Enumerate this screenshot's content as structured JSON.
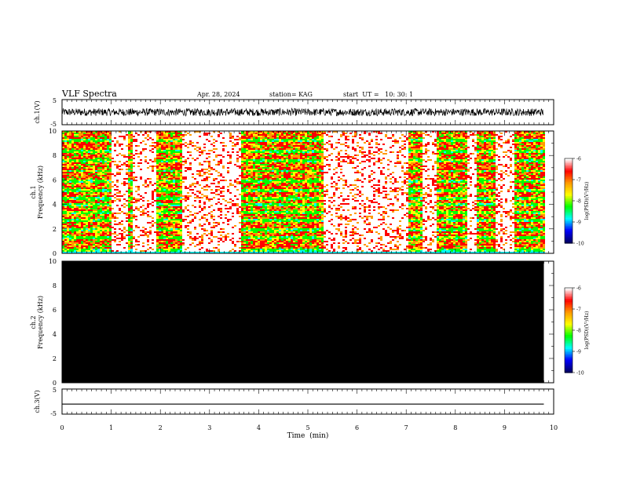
{
  "header": {
    "title": "VLF Spectra",
    "date": "Apr. 28, 2024",
    "station": "station= KAG",
    "start": "start  UT =   10: 30: 1"
  },
  "colors": {
    "background": "#ffffff",
    "axis": "#000000",
    "ch2_fill": "#000000",
    "colormap": [
      "#ffffff",
      "#ff0000",
      "#ff9900",
      "#ffff00",
      "#00ff00",
      "#00ffff",
      "#0000ff",
      "#000066"
    ]
  },
  "chart_data": [
    {
      "type": "line",
      "name": "ch1-waveform",
      "ylabel": "ch.1(V)",
      "xlim": [
        0,
        10
      ],
      "ylim": [
        -5,
        5
      ],
      "yticks": [
        "5",
        "-5"
      ],
      "data_end_min": 9.8,
      "amplitude_V": [
        -1.5,
        1.5
      ]
    },
    {
      "type": "heatmap",
      "name": "ch1-spectrogram",
      "ylabel_lines": [
        "ch.1",
        "Frequency  (kHz)"
      ],
      "xlim": [
        0,
        10
      ],
      "ylim": [
        0,
        10
      ],
      "yticks": [
        "0",
        "2",
        "4",
        "6",
        "8",
        "10"
      ],
      "data_end_min": 9.8,
      "colorbar": {
        "label": "log(PSD)(V²/Hz)",
        "ticks": [
          "-6",
          "-7",
          "-8",
          "-9",
          "-10"
        ],
        "range": [
          -10,
          -6
        ]
      },
      "dominant_band_edges_kHz": [
        0.3,
        1.4,
        2.0,
        2.8,
        3.4,
        4.0,
        4.6,
        5.2,
        6.0,
        6.8,
        7.6,
        8.4,
        9.3
      ],
      "saturated_time_ranges_min": [
        [
          1.0,
          1.3
        ],
        [
          1.4,
          1.9
        ],
        [
          2.4,
          3.6
        ],
        [
          5.3,
          7.0
        ],
        [
          7.3,
          7.6
        ],
        [
          8.2,
          8.4
        ],
        [
          8.8,
          9.2
        ]
      ]
    },
    {
      "type": "heatmap",
      "name": "ch2-spectrogram",
      "ylabel_lines": [
        "ch.2",
        "Frequency  (kHz)"
      ],
      "xlim": [
        0,
        10
      ],
      "ylim": [
        0,
        10
      ],
      "yticks": [
        "0",
        "2",
        "4",
        "6",
        "8",
        "10"
      ],
      "data_end_min": 9.8,
      "uniform_log_psd": -10,
      "colorbar": {
        "label": "log(PSD)(V²/Hz)",
        "ticks": [
          "-6",
          "-7",
          "-8",
          "-9",
          "-10"
        ],
        "range": [
          -10,
          -6
        ]
      }
    },
    {
      "type": "line",
      "name": "ch3-waveform",
      "ylabel": "ch.3(V)",
      "xlim": [
        0,
        10
      ],
      "ylim": [
        -5,
        5
      ],
      "yticks": [
        "5",
        "-5"
      ],
      "data_end_min": 9.8,
      "constant_value_V": -1.0
    }
  ],
  "xaxis": {
    "label": "Time  (min)",
    "ticks": [
      "0",
      "1",
      "2",
      "3",
      "4",
      "5",
      "6",
      "7",
      "8",
      "9",
      "10"
    ]
  }
}
